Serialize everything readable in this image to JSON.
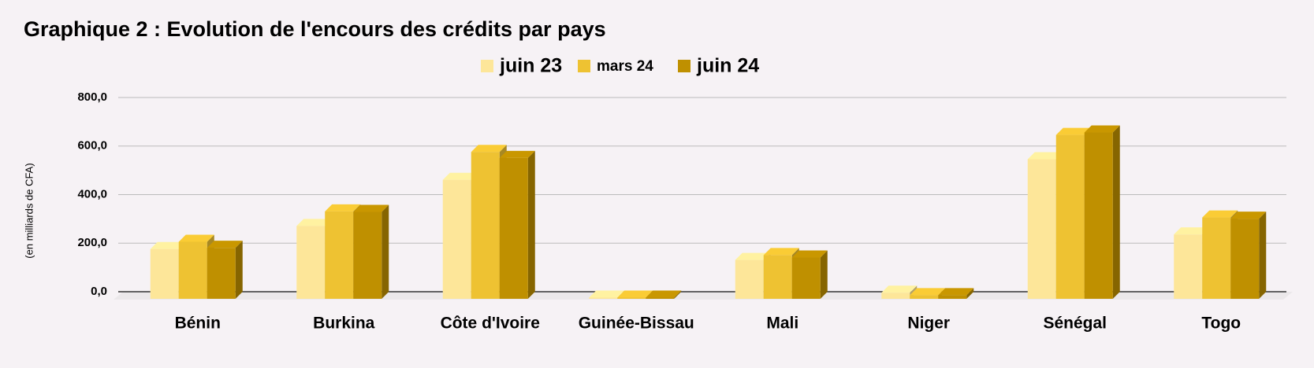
{
  "chart_data": {
    "type": "bar3d",
    "title": "Graphique 2 : Evolution de l'encours des crédits par pays",
    "y_label": "(en milliards de CFA)",
    "categories": [
      "Bénin",
      "Burkina",
      "Côte d'Ivoire",
      "Guinée-Bissau",
      "Mali",
      "Niger",
      "Sénégal",
      "Togo"
    ],
    "series": [
      {
        "name": "juin 23",
        "color": "#fde699",
        "values": [
          205,
          300,
          490,
          5,
          160,
          25,
          575,
          265
        ]
      },
      {
        "name": "mars 24",
        "color": "#eec232",
        "values": [
          235,
          360,
          605,
          5,
          180,
          15,
          675,
          335
        ]
      },
      {
        "name": "juin 24",
        "color": "#bf9000",
        "values": [
          210,
          358,
          580,
          5,
          170,
          15,
          685,
          330
        ]
      }
    ],
    "ylim": [
      0,
      800
    ],
    "yticks": [
      {
        "value": 0,
        "label": "0,0"
      },
      {
        "value": 200,
        "label": "200,0"
      },
      {
        "value": 400,
        "label": "400,0"
      },
      {
        "value": 600,
        "label": "600,0"
      },
      {
        "value": 800,
        "label": "800,0"
      }
    ],
    "grid": true,
    "legend": "top"
  }
}
